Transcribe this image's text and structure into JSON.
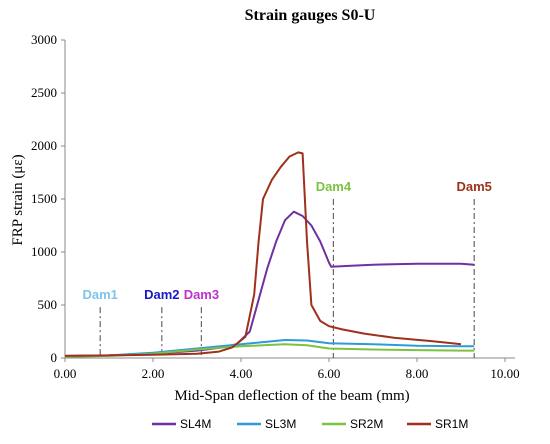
{
  "chart_data": {
    "type": "line",
    "title": "Strain gauges S0-U",
    "xlabel": "Mid-Span deflection of the beam (mm)",
    "ylabel": "FRP strain (με)",
    "xlim": [
      0,
      10
    ],
    "ylim": [
      0,
      3000
    ],
    "x_ticks": [
      "0.00",
      "2.00",
      "4.00",
      "6.00",
      "8.00",
      "10.00"
    ],
    "y_ticks": [
      "0",
      "500",
      "1000",
      "1500",
      "2000",
      "2500",
      "3000"
    ],
    "grid": false,
    "legend_position": "bottom",
    "series": [
      {
        "name": "SL4M",
        "color": "#7030A0",
        "points": [
          [
            0,
            20
          ],
          [
            1,
            25
          ],
          [
            2,
            40
          ],
          [
            3,
            70
          ],
          [
            3.5,
            95
          ],
          [
            3.9,
            130
          ],
          [
            4.2,
            250
          ],
          [
            4.4,
            550
          ],
          [
            4.6,
            850
          ],
          [
            4.8,
            1100
          ],
          [
            5.0,
            1300
          ],
          [
            5.2,
            1380
          ],
          [
            5.4,
            1340
          ],
          [
            5.6,
            1250
          ],
          [
            5.8,
            1100
          ],
          [
            6.0,
            900
          ],
          [
            6.05,
            860
          ],
          [
            6.5,
            870
          ],
          [
            7.0,
            880
          ],
          [
            8.0,
            890
          ],
          [
            9.0,
            890
          ],
          [
            9.3,
            880
          ]
        ]
      },
      {
        "name": "SL3M",
        "color": "#2E9BD6",
        "points": [
          [
            0,
            15
          ],
          [
            1,
            25
          ],
          [
            2,
            50
          ],
          [
            3,
            90
          ],
          [
            4,
            130
          ],
          [
            4.5,
            150
          ],
          [
            5,
            170
          ],
          [
            5.5,
            165
          ],
          [
            6,
            140
          ],
          [
            7,
            130
          ],
          [
            8,
            115
          ],
          [
            9,
            110
          ],
          [
            9.3,
            110
          ]
        ]
      },
      {
        "name": "SR2M",
        "color": "#7CC242",
        "points": [
          [
            0,
            10
          ],
          [
            1,
            20
          ],
          [
            2,
            40
          ],
          [
            3,
            80
          ],
          [
            4,
            110
          ],
          [
            4.5,
            120
          ],
          [
            5,
            130
          ],
          [
            5.5,
            120
          ],
          [
            6,
            90
          ],
          [
            7,
            80
          ],
          [
            8,
            75
          ],
          [
            9,
            70
          ],
          [
            9.3,
            70
          ]
        ]
      },
      {
        "name": "SR1M",
        "color": "#A0301C",
        "points": [
          [
            0,
            20
          ],
          [
            1,
            25
          ],
          [
            2,
            30
          ],
          [
            3,
            40
          ],
          [
            3.5,
            60
          ],
          [
            3.8,
            100
          ],
          [
            4.1,
            200
          ],
          [
            4.3,
            600
          ],
          [
            4.4,
            1100
          ],
          [
            4.5,
            1500
          ],
          [
            4.7,
            1680
          ],
          [
            4.9,
            1800
          ],
          [
            5.1,
            1900
          ],
          [
            5.3,
            1940
          ],
          [
            5.4,
            1930
          ],
          [
            5.5,
            1100
          ],
          [
            5.6,
            500
          ],
          [
            5.8,
            350
          ],
          [
            6.0,
            300
          ],
          [
            6.3,
            270
          ],
          [
            6.8,
            230
          ],
          [
            7.5,
            190
          ],
          [
            8.3,
            160
          ],
          [
            8.8,
            140
          ],
          [
            9.0,
            130
          ]
        ]
      }
    ],
    "markers": [
      {
        "label": "Dam1",
        "x": 0.8,
        "color": "#7EC4E8",
        "y_top": 480
      },
      {
        "label": "Dam2",
        "x": 2.2,
        "color": "#1A1AC0",
        "y_top": 480
      },
      {
        "label": "Dam3",
        "x": 3.1,
        "color": "#C030D0",
        "y_top": 480
      },
      {
        "label": "Dam4",
        "x": 6.1,
        "color": "#7CC242",
        "y_top": 1500
      },
      {
        "label": "Dam5",
        "x": 9.3,
        "color": "#A0301C",
        "y_top": 1500
      }
    ]
  }
}
